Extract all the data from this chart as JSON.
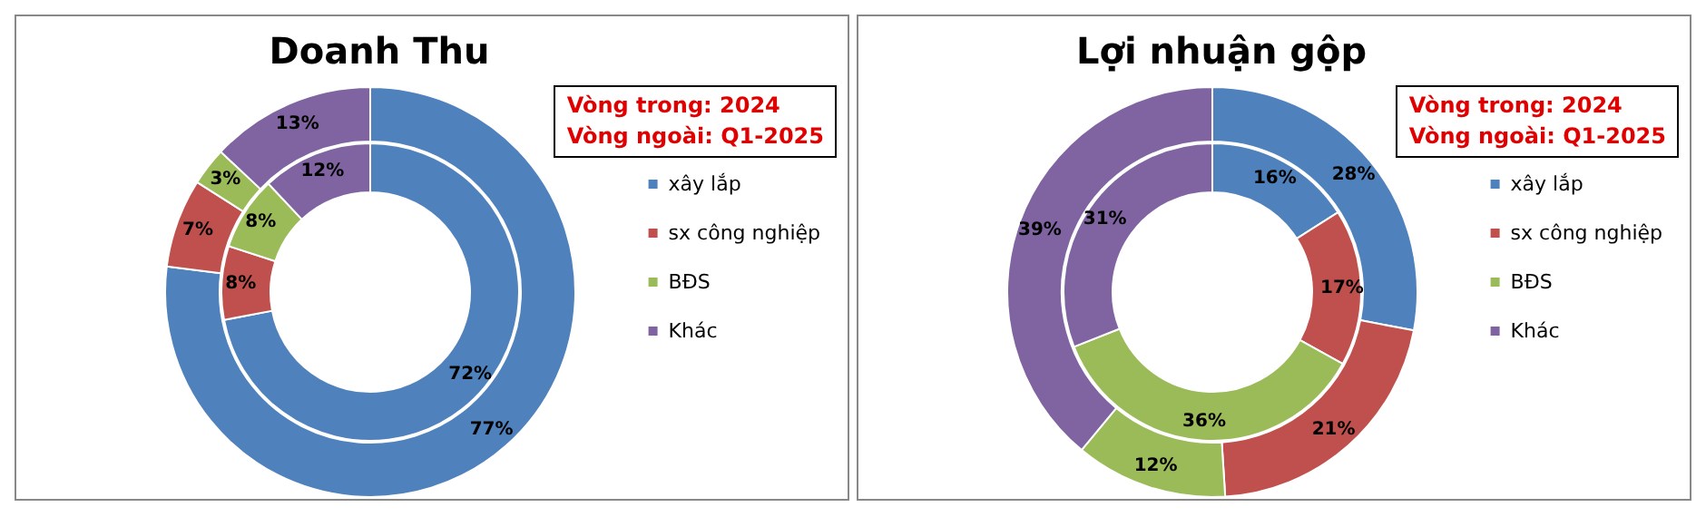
{
  "chart_data": [
    {
      "type": "donut",
      "title": "Doanh Thu",
      "categories": [
        "xây lắp",
        "sx công nghiệp",
        "BĐS",
        "Khác"
      ],
      "colors": [
        "#4f81bd",
        "#c0504d",
        "#9bbb59",
        "#8064a2"
      ],
      "series": [
        {
          "values": [
            72,
            8,
            8,
            12
          ],
          "value_labels": [
            "72%",
            "8%",
            "8%",
            "12%"
          ]
        },
        {
          "values": [
            77,
            7,
            3,
            13
          ],
          "value_labels": [
            "77%",
            "7%",
            "3%",
            "13%"
          ]
        }
      ],
      "legend": "right",
      "annotations": [
        "Vòng trong: 2024",
        "Vòng ngoài: Q1-2025"
      ]
    },
    {
      "type": "donut",
      "title": "Lợi nhuận gộp",
      "categories": [
        "xây lắp",
        "sx công nghiệp",
        "BĐS",
        "Khác"
      ],
      "colors": [
        "#4f81bd",
        "#c0504d",
        "#9bbb59",
        "#8064a2"
      ],
      "series": [
        {
          "values": [
            16,
            17,
            36,
            31
          ],
          "value_labels": [
            "16%",
            "17%",
            "36%",
            "31%"
          ]
        },
        {
          "values": [
            28,
            21,
            12,
            39
          ],
          "value_labels": [
            "28%",
            "21%",
            "12%",
            "39%"
          ]
        }
      ],
      "legend": "right",
      "annotations": [
        "Vòng trong: 2024",
        "Vòng ngoài: Q1-2025"
      ]
    }
  ]
}
